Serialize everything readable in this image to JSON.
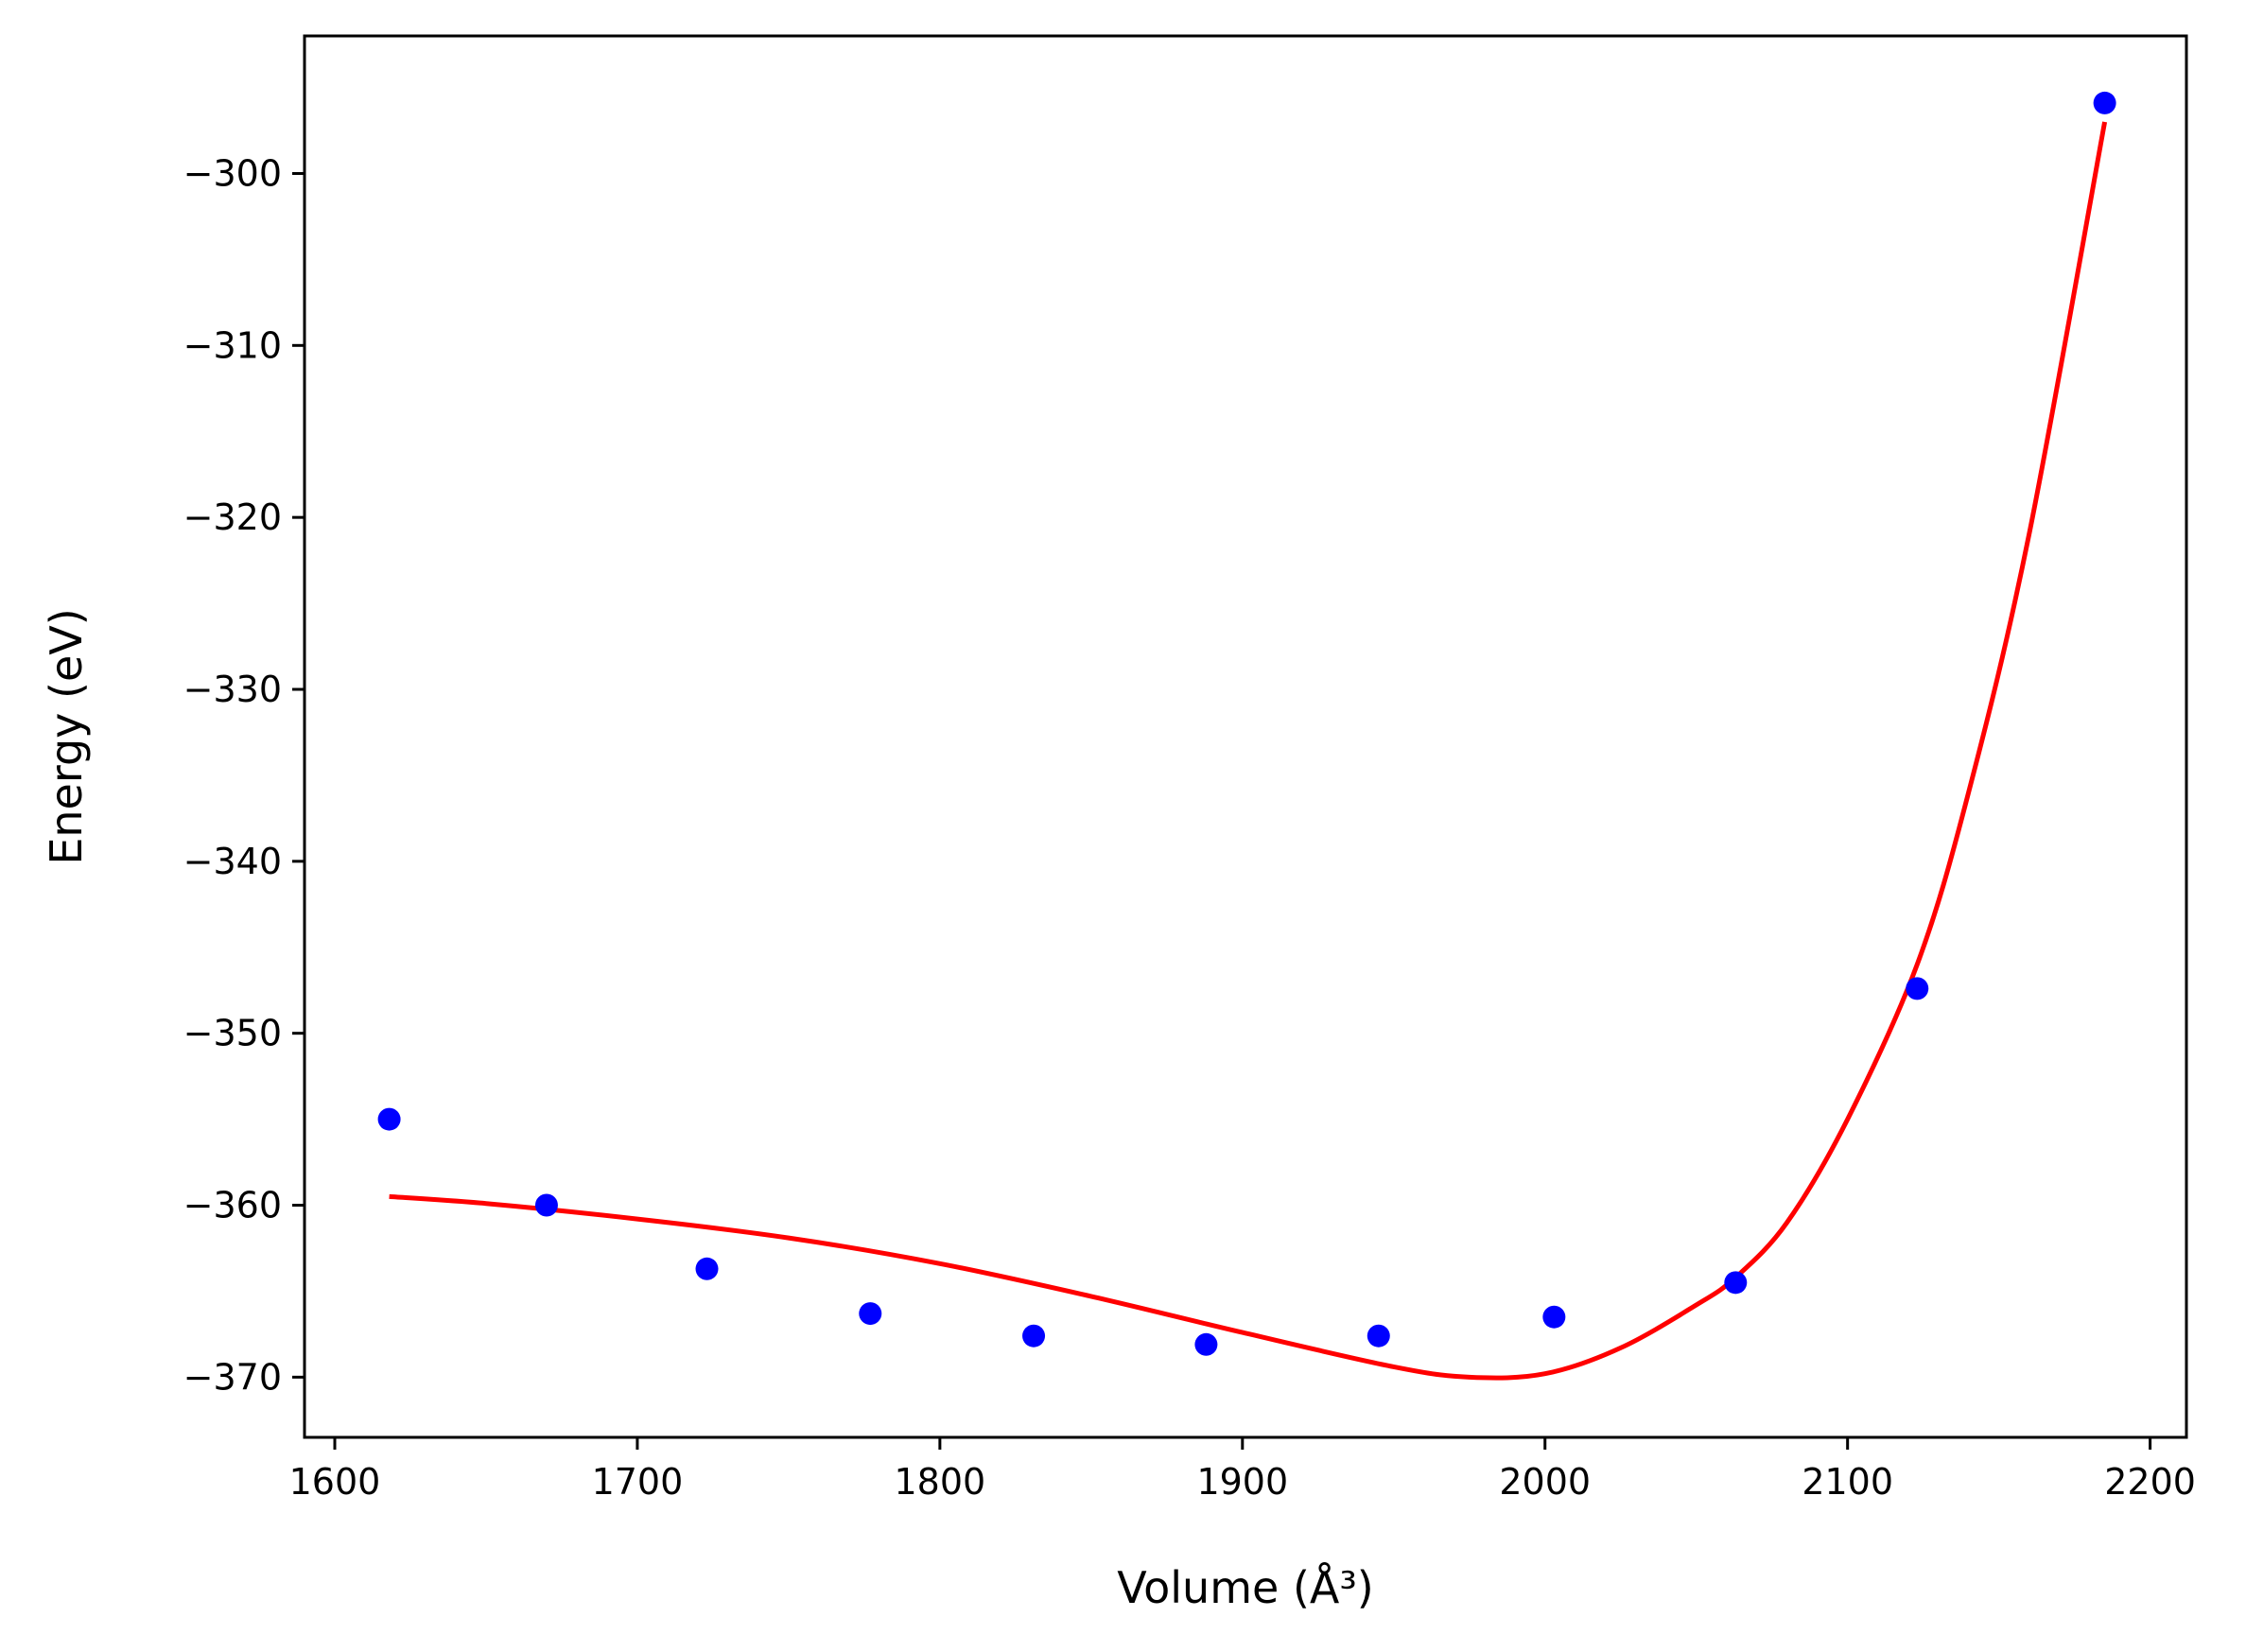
{
  "chart_data": {
    "type": "scatter",
    "title": "",
    "xlabel": "Volume (Å³)",
    "ylabel": "Energy (eV)",
    "xlim": [
      1590,
      2212
    ],
    "ylim": [
      -373.5,
      -292
    ],
    "xticks": [
      1600,
      1700,
      1800,
      1900,
      2000,
      2100,
      2200
    ],
    "xtick_labels": [
      "1600",
      "1700",
      "1800",
      "1900",
      "2000",
      "2100",
      "2200"
    ],
    "yticks": [
      -300,
      -310,
      -320,
      -330,
      -340,
      -350,
      -360,
      -370
    ],
    "ytick_labels": [
      "−300",
      "−310",
      "−320",
      "−330",
      "−340",
      "−350",
      "−360",
      "−370"
    ],
    "grid": false,
    "series": [
      {
        "type": "scatter",
        "color": "#0000ff",
        "x": [
          1618,
          1670,
          1723,
          1777,
          1831,
          1888,
          1945,
          2003,
          2063,
          2123,
          2185
        ],
        "y": [
          -355.0,
          -360.0,
          -363.7,
          -366.3,
          -367.6,
          -368.1,
          -367.6,
          -366.5,
          -364.5,
          -347.4,
          -295.9
        ]
      },
      {
        "type": "line",
        "color": "#ff0000",
        "x": [
          1618,
          1650,
          1700,
          1750,
          1800,
          1850,
          1900,
          1950,
          1975,
          2000,
          2025,
          2050,
          2063,
          2080,
          2100,
          2123,
          2140,
          2160,
          2185
        ],
        "y": [
          -359.5,
          -359.9,
          -360.8,
          -361.9,
          -363.4,
          -365.3,
          -367.4,
          -369.4,
          -370.0,
          -369.8,
          -368.3,
          -365.8,
          -364.2,
          -361.0,
          -355.0,
          -346.0,
          -336.0,
          -321.0,
          -297.0
        ]
      }
    ]
  }
}
